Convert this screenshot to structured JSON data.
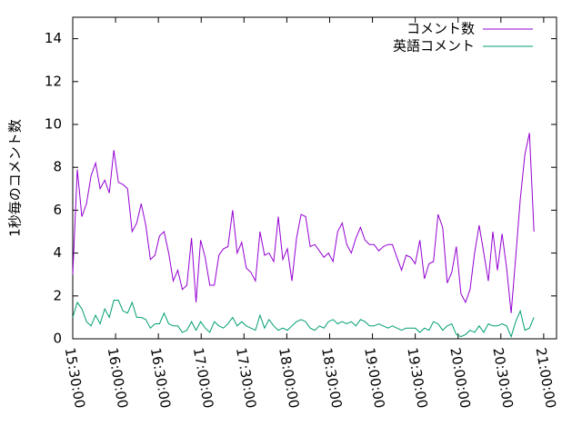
{
  "chart_data": {
    "type": "line",
    "y_label": "1秒毎のコメント数",
    "x": [
      "15:30:00",
      "15:33:12",
      "15:36:24",
      "15:39:36",
      "15:42:48",
      "15:46:00",
      "15:49:12",
      "15:52:24",
      "15:55:36",
      "15:58:48",
      "16:02:00",
      "16:05:12",
      "16:08:24",
      "16:11:36",
      "16:14:48",
      "16:18:00",
      "16:21:12",
      "16:24:24",
      "16:27:36",
      "16:30:48",
      "16:34:00",
      "16:37:12",
      "16:40:24",
      "16:43:36",
      "16:46:48",
      "16:50:00",
      "16:53:12",
      "16:56:24",
      "16:59:36",
      "17:02:48",
      "17:06:00",
      "17:09:12",
      "17:12:24",
      "17:15:36",
      "17:18:48",
      "17:22:00",
      "17:25:12",
      "17:28:24",
      "17:31:36",
      "17:34:48",
      "17:38:00",
      "17:41:12",
      "17:44:24",
      "17:47:36",
      "17:50:48",
      "17:54:00",
      "17:57:12",
      "18:00:24",
      "18:03:36",
      "18:06:48",
      "18:10:00",
      "18:13:12",
      "18:16:24",
      "18:19:36",
      "18:22:48",
      "18:26:00",
      "18:29:12",
      "18:32:24",
      "18:35:36",
      "18:38:48",
      "18:42:00",
      "18:45:12",
      "18:48:24",
      "18:51:36",
      "18:54:48",
      "18:58:00",
      "19:01:12",
      "19:04:24",
      "19:07:36",
      "19:10:48",
      "19:14:00",
      "19:17:12",
      "19:20:24",
      "19:23:36",
      "19:26:48",
      "19:30:00",
      "19:33:12",
      "19:36:24",
      "19:39:36",
      "19:42:48",
      "19:46:00",
      "19:49:12",
      "19:52:24",
      "19:55:36",
      "19:58:48",
      "20:02:00",
      "20:05:12",
      "20:08:24",
      "20:11:36",
      "20:14:48",
      "20:18:00",
      "20:21:12",
      "20:24:24",
      "20:27:36",
      "20:30:48",
      "20:34:00",
      "20:37:12",
      "20:40:24",
      "20:43:36",
      "20:46:48",
      "20:50:00",
      "20:53:12"
    ],
    "series": [
      {
        "name": "コメント数",
        "color": "#9400d3",
        "values": [
          3.0,
          7.9,
          5.7,
          6.3,
          7.6,
          8.2,
          7.0,
          7.4,
          6.8,
          8.8,
          7.3,
          7.2,
          7.0,
          5.0,
          5.4,
          6.3,
          5.3,
          3.7,
          3.9,
          4.8,
          5.0,
          4.0,
          2.7,
          3.2,
          2.3,
          2.5,
          4.7,
          1.7,
          4.6,
          3.8,
          2.5,
          2.5,
          3.9,
          4.2,
          4.3,
          6.0,
          4.0,
          4.5,
          3.3,
          3.1,
          2.7,
          5.0,
          3.9,
          4.0,
          3.6,
          5.7,
          3.7,
          4.2,
          2.7,
          4.7,
          5.8,
          5.7,
          4.3,
          4.4,
          4.1,
          3.8,
          4.0,
          3.6,
          5.0,
          5.4,
          4.4,
          4.0,
          4.7,
          5.2,
          4.6,
          4.4,
          4.4,
          4.1,
          4.3,
          4.4,
          4.4,
          3.8,
          3.2,
          3.9,
          3.8,
          3.5,
          4.6,
          2.8,
          3.5,
          3.6,
          5.8,
          5.2,
          2.6,
          3.1,
          4.3,
          2.1,
          1.7,
          2.3,
          4.0,
          5.3,
          4.0,
          2.7,
          5.0,
          3.2,
          4.9,
          3.3,
          1.2,
          3.8,
          6.5,
          8.6,
          9.6,
          5.0
        ]
      },
      {
        "name": "英語コメント",
        "color": "#009e73",
        "values": [
          1.0,
          1.7,
          1.4,
          0.8,
          0.6,
          1.1,
          0.7,
          1.4,
          1.0,
          1.8,
          1.8,
          1.3,
          1.2,
          1.7,
          1.0,
          1.0,
          0.9,
          0.5,
          0.7,
          0.7,
          1.2,
          0.7,
          0.6,
          0.6,
          0.3,
          0.4,
          0.8,
          0.4,
          0.8,
          0.5,
          0.3,
          0.8,
          0.6,
          0.5,
          0.7,
          1.0,
          0.6,
          0.8,
          0.6,
          0.5,
          0.4,
          1.1,
          0.5,
          0.9,
          0.6,
          0.4,
          0.5,
          0.4,
          0.6,
          0.8,
          0.9,
          0.8,
          0.5,
          0.4,
          0.6,
          0.5,
          0.8,
          0.9,
          0.7,
          0.8,
          0.7,
          0.8,
          0.6,
          0.9,
          0.8,
          0.6,
          0.6,
          0.7,
          0.6,
          0.5,
          0.6,
          0.5,
          0.4,
          0.5,
          0.5,
          0.5,
          0.3,
          0.5,
          0.4,
          0.8,
          0.7,
          0.4,
          0.6,
          0.7,
          0.2,
          0.1,
          0.2,
          0.4,
          0.3,
          0.6,
          0.3,
          0.7,
          0.6,
          0.6,
          0.7,
          0.6,
          0.1,
          0.8,
          1.3,
          0.4,
          0.5,
          1.0
        ]
      }
    ],
    "xlim": [
      "15:30:00",
      "21:09:00"
    ],
    "xticks": [
      "15:30:00",
      "16:00:00",
      "16:30:00",
      "17:00:00",
      "17:30:00",
      "18:00:00",
      "18:30:00",
      "19:00:00",
      "19:30:00",
      "20:00:00",
      "20:30:00",
      "21:00:00"
    ],
    "ylim": [
      0,
      15
    ],
    "yticks": [
      0,
      2,
      4,
      6,
      8,
      10,
      12,
      14
    ],
    "grid": false,
    "legend": "top-right"
  }
}
